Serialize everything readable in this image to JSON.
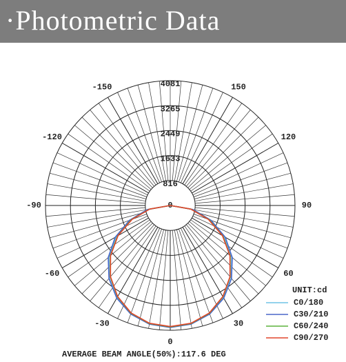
{
  "header": {
    "title": "·Photometric Data"
  },
  "chart_data": {
    "type": "polar",
    "x": [
      -90,
      -80,
      -70,
      -60,
      -50,
      -40,
      -30,
      -20,
      -10,
      0,
      10,
      20,
      30,
      40,
      50,
      60,
      70,
      80,
      90
    ],
    "series": [
      {
        "name": "C0/180",
        "color": "#6ec3e6",
        "values": [
          0,
          730,
          1390,
          2040,
          2620,
          3100,
          3480,
          3770,
          3930,
          3980,
          3930,
          3770,
          3480,
          3100,
          2620,
          2040,
          1390,
          730,
          0
        ]
      },
      {
        "name": "C30/210",
        "color": "#4a67c9",
        "values": [
          0,
          760,
          1420,
          2080,
          2650,
          3120,
          3500,
          3780,
          3940,
          3990,
          3940,
          3780,
          3500,
          3120,
          2650,
          2080,
          1420,
          760,
          0
        ]
      },
      {
        "name": "C60/240",
        "color": "#5cb23c",
        "values": [
          0,
          690,
          1350,
          1990,
          2560,
          3050,
          3450,
          3750,
          3920,
          3970,
          3920,
          3750,
          3450,
          3050,
          2560,
          1990,
          1350,
          690,
          0
        ]
      },
      {
        "name": "C90/270",
        "color": "#e0452c",
        "values": [
          0,
          680,
          1330,
          1970,
          2550,
          3040,
          3440,
          3740,
          3910,
          3960,
          3910,
          3740,
          3440,
          3040,
          2550,
          1970,
          1330,
          680,
          0
        ]
      }
    ],
    "ylim": [
      0,
      4081
    ],
    "yticks": [
      0,
      816,
      1633,
      2449,
      3265,
      4081
    ],
    "xticks": [
      -150,
      -120,
      -90,
      -60,
      -30,
      0,
      30,
      60,
      90,
      120,
      150
    ],
    "unit": "UNIT:cd",
    "footer": "AVERAGE BEAM ANGLE(50%):117.6 DEG",
    "grid": true
  }
}
